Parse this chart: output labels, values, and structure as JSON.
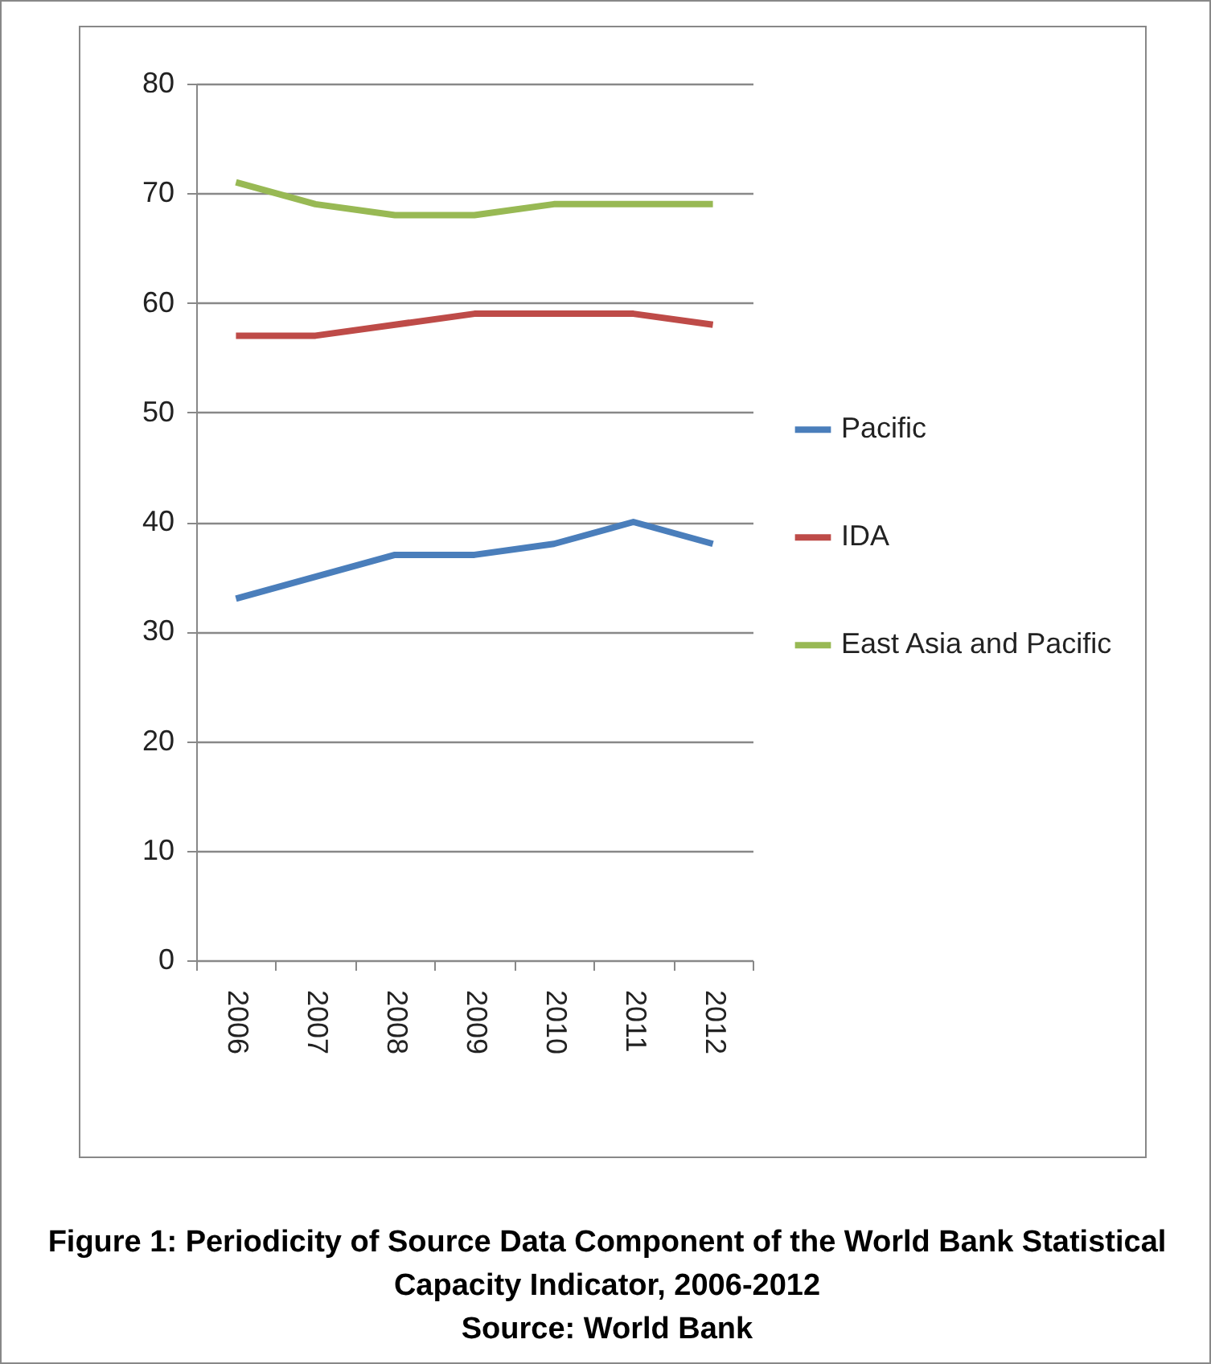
{
  "chart_data": {
    "type": "line",
    "title": "Figure 1:  Periodicity of Source Data Component of the World Bank Statistical Capacity Indicator, 2006-2012",
    "annotations": [
      "Source: World Bank"
    ],
    "categories": [
      "2006",
      "2007",
      "2008",
      "2009",
      "2010",
      "2011",
      "2012"
    ],
    "series": [
      {
        "name": "Pacific",
        "color": "#4a7ebb",
        "values": [
          33,
          35,
          37,
          37,
          38,
          40,
          38
        ]
      },
      {
        "name": "IDA",
        "color": "#be4b48",
        "values": [
          57,
          57,
          58,
          59,
          59,
          59,
          58
        ]
      },
      {
        "name": "East Asia and Pacific",
        "color": "#98b954",
        "values": [
          71,
          69,
          68,
          68,
          69,
          69,
          69
        ]
      }
    ],
    "ylim": [
      0,
      80
    ],
    "yticks": [
      0,
      10,
      20,
      30,
      40,
      50,
      60,
      70,
      80
    ],
    "grid": "y",
    "legend": "right",
    "marker": "none",
    "line_style": "solid"
  }
}
